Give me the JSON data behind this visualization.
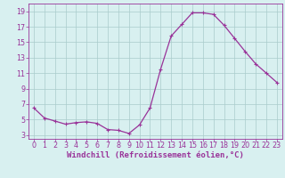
{
  "x": [
    0,
    1,
    2,
    3,
    4,
    5,
    6,
    7,
    8,
    9,
    10,
    11,
    12,
    13,
    14,
    15,
    16,
    17,
    18,
    19,
    20,
    21,
    22,
    23
  ],
  "y": [
    6.5,
    5.2,
    4.8,
    4.4,
    4.6,
    4.7,
    4.5,
    3.7,
    3.6,
    3.2,
    4.3,
    6.5,
    11.5,
    15.8,
    17.3,
    18.8,
    18.8,
    18.6,
    17.2,
    15.5,
    13.8,
    12.2,
    11.0,
    9.8
  ],
  "line_color": "#993399",
  "marker": "+",
  "marker_size": 3.5,
  "marker_lw": 0.8,
  "line_width": 0.9,
  "bg_color": "#d8f0f0",
  "grid_color": "#aacccc",
  "xlabel": "Windchill (Refroidissement éolien,°C)",
  "ylabel": "",
  "xlim": [
    -0.5,
    23.5
  ],
  "ylim": [
    2.5,
    20.0
  ],
  "yticks": [
    3,
    5,
    7,
    9,
    11,
    13,
    15,
    17,
    19
  ],
  "xticks": [
    0,
    1,
    2,
    3,
    4,
    5,
    6,
    7,
    8,
    9,
    10,
    11,
    12,
    13,
    14,
    15,
    16,
    17,
    18,
    19,
    20,
    21,
    22,
    23
  ],
  "label_color": "#993399",
  "tick_color": "#993399",
  "font_size": 5.8,
  "xlabel_fontsize": 6.5
}
